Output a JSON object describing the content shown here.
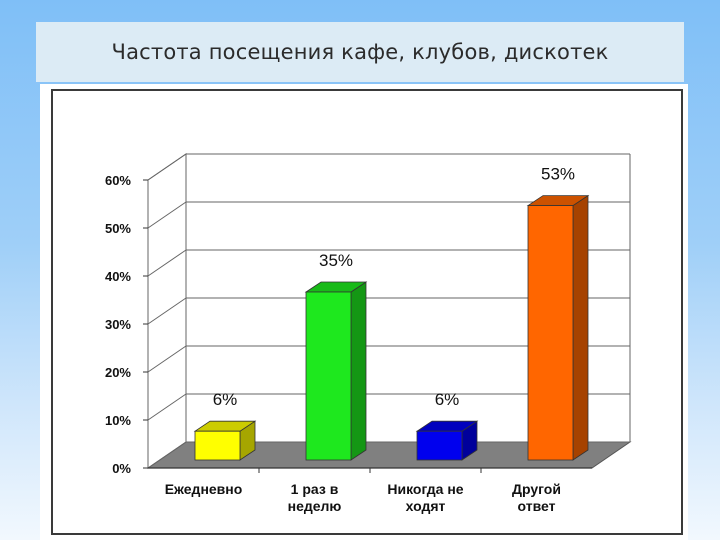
{
  "slide": {
    "title": "Частота посещения кафе, клубов, дискотек"
  },
  "chart_data": {
    "type": "bar",
    "title": "",
    "xlabel": "",
    "ylabel": "",
    "ylim": [
      0,
      60
    ],
    "y_ticks": [
      "0%",
      "10%",
      "20%",
      "30%",
      "40%",
      "50%",
      "60%"
    ],
    "categories": [
      [
        "Ежедневно"
      ],
      [
        "1 раз в",
        "неделю"
      ],
      [
        "Никогда не",
        "ходят"
      ],
      [
        "Другой",
        "ответ"
      ]
    ],
    "values": [
      6,
      35,
      6,
      53
    ],
    "data_labels": [
      "6%",
      "35%",
      "6%",
      "53%"
    ],
    "colors": [
      "#ffff00",
      "#1ee81e",
      "#0000ee",
      "#ff6600"
    ],
    "grid": true,
    "three_d": true,
    "floor_color": "#808080"
  }
}
